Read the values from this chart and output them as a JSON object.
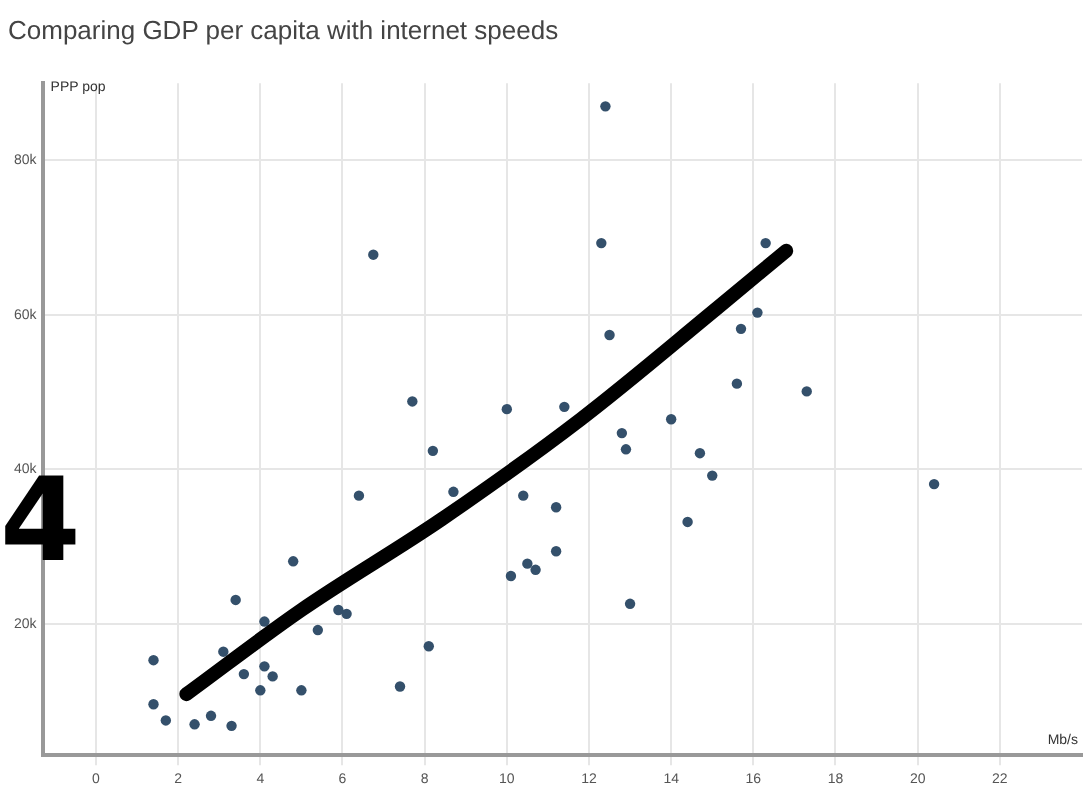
{
  "chart_data": {
    "type": "scatter",
    "title": "Comparing GDP per capita with internet speeds",
    "xlabel": "Mb/s",
    "ylabel": "PPP pop",
    "xlim": [
      -1.3,
      24
    ],
    "xticks": [
      0,
      2,
      4,
      6,
      8,
      10,
      12,
      14,
      16,
      18,
      20,
      22
    ],
    "ylim": [
      3000,
      90000
    ],
    "yticks": [
      {
        "value": 20000,
        "label": "20k"
      },
      {
        "value": 40000,
        "label": "40k"
      },
      {
        "value": 60000,
        "label": "60k"
      },
      {
        "value": 80000,
        "label": "80k"
      }
    ],
    "grid": true,
    "legend": false,
    "marker": "circle",
    "annotations": [
      "4"
    ],
    "series": [
      {
        "color": "#34506b",
        "x": [
          12.4,
          6.75,
          12.3,
          16.3,
          12.5,
          16.1,
          15.7,
          17.3,
          15.6,
          7.7,
          10.0,
          11.4,
          14.0,
          8.2,
          12.8,
          12.9,
          14.7,
          15.0,
          8.7,
          6.4,
          10.4,
          11.2,
          20.4,
          14.4,
          4.8,
          11.2,
          10.5,
          10.7,
          10.1,
          13.0,
          3.4,
          4.1,
          5.4,
          5.9,
          6.1,
          8.1,
          1.4,
          3.1,
          4.1,
          4.3,
          3.6,
          4.0,
          5.0,
          7.4,
          1.4,
          1.7,
          2.4,
          2.8,
          3.3
        ],
        "values": [
          87000,
          67800,
          69300,
          69300,
          57400,
          60300,
          58200,
          50100,
          51100,
          48800,
          47800,
          48100,
          46500,
          42400,
          44700,
          42600,
          42100,
          39200,
          37100,
          36600,
          36600,
          35100,
          38100,
          33200,
          28100,
          29400,
          27800,
          27000,
          26200,
          22600,
          23100,
          20300,
          19200,
          21800,
          21300,
          17100,
          15300,
          16400,
          14500,
          13200,
          13500,
          11400,
          11400,
          11900,
          9600,
          7500,
          7000,
          8100,
          6800
        ]
      },
      {
        "type": "line",
        "color": "#000000",
        "marker": "none",
        "line_style": "solid",
        "x": [
          2.2,
          5.0,
          8.4,
          11.8,
          15.1,
          16.8
        ],
        "values": [
          10900,
          21800,
          33500,
          46500,
          60800,
          68300
        ]
      }
    ]
  }
}
